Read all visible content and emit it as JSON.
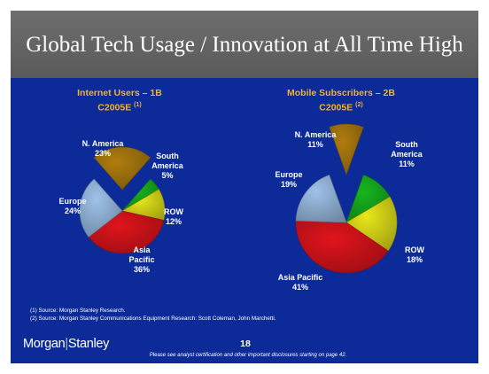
{
  "slide": {
    "title": "Global Tech Usage / Innovation at All Time High"
  },
  "chart_data": [
    {
      "type": "pie",
      "title": "Internet Users – 1B",
      "subtitle": "C2005E",
      "footnote_ref": "(1)",
      "slices": [
        {
          "label": "N. America",
          "value": 23,
          "value_label": "23%",
          "color": "#b07d0f",
          "exploded": true
        },
        {
          "label": "South America",
          "value": 5,
          "value_label": "5%",
          "color": "#17b51e"
        },
        {
          "label": "ROW",
          "value": 12,
          "value_label": "12%",
          "color": "#e8e81a"
        },
        {
          "label": "Asia Pacific",
          "value": 36,
          "value_label": "36%",
          "color": "#e0141c"
        },
        {
          "label": "Europe",
          "value": 24,
          "value_label": "24%",
          "color": "#9fc2ea"
        }
      ]
    },
    {
      "type": "pie",
      "title": "Mobile Subscribers – 2B",
      "subtitle": "C2005E",
      "footnote_ref": "(2)",
      "slices": [
        {
          "label": "N. America",
          "value": 11,
          "value_label": "11%",
          "color": "#b07d0f",
          "exploded": true
        },
        {
          "label": "South America",
          "value": 11,
          "value_label": "11%",
          "color": "#17b51e"
        },
        {
          "label": "ROW",
          "value": 18,
          "value_label": "18%",
          "color": "#e8e81a"
        },
        {
          "label": "Asia Pacific",
          "value": 41,
          "value_label": "41%",
          "color": "#e0141c"
        },
        {
          "label": "Europe",
          "value": 19,
          "value_label": "19%",
          "color": "#9fc2ea"
        }
      ]
    }
  ],
  "labels": {
    "internet": {
      "n_america": "N. America",
      "n_america_pct": "23%",
      "south_america_1": "South",
      "south_america_2": "America",
      "south_america_pct": "5%",
      "row": "ROW",
      "row_pct": "12%",
      "asia_1": "Asia",
      "asia_2": "Pacific",
      "asia_pct": "36%",
      "europe": "Europe",
      "europe_pct": "24%"
    },
    "mobile": {
      "n_america": "N. America",
      "n_america_pct": "11%",
      "south_america_1": "South",
      "south_america_2": "America",
      "south_america_pct": "11%",
      "row": "ROW",
      "row_pct": "18%",
      "asia": "Asia Pacific",
      "asia_pct": "41%",
      "europe": "Europe",
      "europe_pct": "19%"
    }
  },
  "sources": {
    "source_1": "(1) Source: Morgan Stanley Research.",
    "source_2": "(2) Source: Morgan Stanley Communications Equipment Research: Scott Coleman, John Marchetti."
  },
  "footer": {
    "logo_part1": "Morgan",
    "logo_part2": "Stanley",
    "page_number": "18",
    "disclaimer": "Please see analyst certification and other important disclosures starting on page 42."
  }
}
